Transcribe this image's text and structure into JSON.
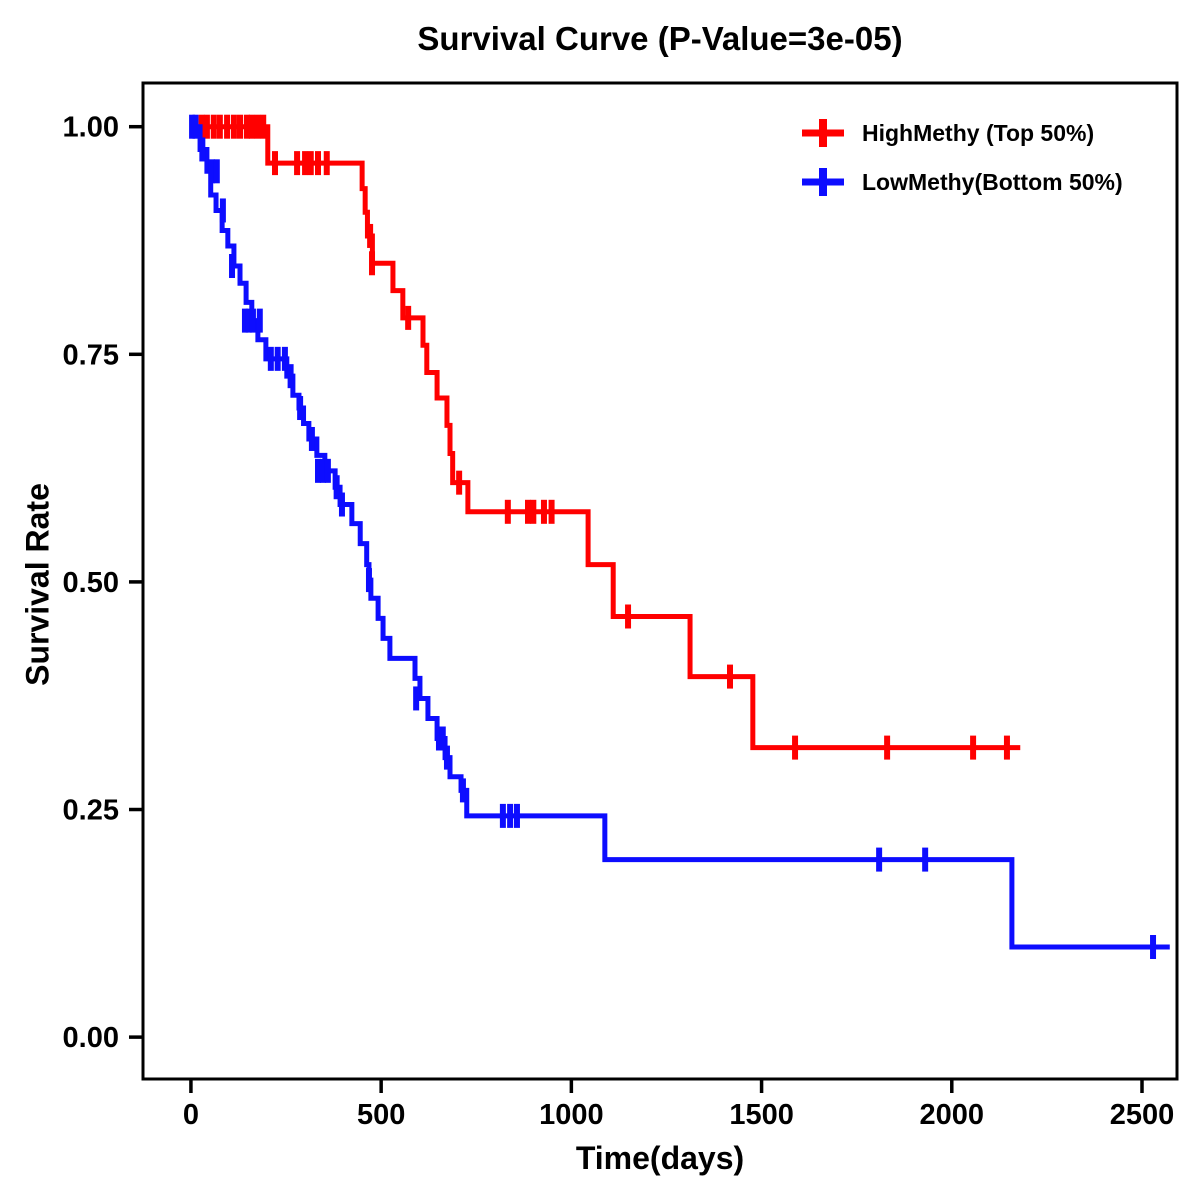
{
  "title": "Survival Curve (P-Value=3e-05)",
  "chart_data": {
    "type": "line",
    "subtype": "kaplan-meier-step-curves",
    "title": "Survival Curve (P-Value=3e-05)",
    "xlabel": "Time(days)",
    "ylabel": "Survival Rate",
    "grid": false,
    "legend_position": "top-right-inside",
    "x_tick_values": [
      0,
      500,
      1000,
      1500,
      2000,
      2500
    ],
    "x_tick_labels": [
      "0",
      "500",
      "1000",
      "1500",
      "2000",
      "2500"
    ],
    "y_tick_values": [
      0,
      0.25,
      0.5,
      0.75,
      1.0
    ],
    "y_tick_labels": [
      "0.00",
      "0.25",
      "0.50",
      "0.75",
      "1.00"
    ],
    "xlim": [
      -126,
      2592
    ],
    "ylim": [
      -0.046,
      1.048
    ],
    "series": [
      {
        "name": "HighMethy (Top 50%)",
        "slug": "highmethy",
        "color": "#FF0000",
        "start": [
          0,
          1.0
        ],
        "end_time": 2180,
        "steps": [
          [
            202,
            0.96
          ],
          [
            450,
            0.932
          ],
          [
            458,
            0.906
          ],
          [
            464,
            0.88
          ],
          [
            477,
            0.85
          ],
          [
            531,
            0.82
          ],
          [
            557,
            0.79
          ],
          [
            610,
            0.76
          ],
          [
            620,
            0.73
          ],
          [
            647,
            0.702
          ],
          [
            673,
            0.672
          ],
          [
            681,
            0.641
          ],
          [
            688,
            0.609
          ],
          [
            728,
            0.577
          ],
          [
            1044,
            0.519
          ],
          [
            1110,
            0.462
          ],
          [
            1312,
            0.396
          ],
          [
            1477,
            0.318
          ]
        ],
        "censors": [
          [
            28,
            1.0
          ],
          [
            42,
            1.0
          ],
          [
            60,
            1.0
          ],
          [
            76,
            1.0
          ],
          [
            95,
            1.0
          ],
          [
            113,
            1.0
          ],
          [
            129,
            1.0
          ],
          [
            147,
            1.0
          ],
          [
            160,
            1.0
          ],
          [
            175,
            1.0
          ],
          [
            190,
            1.0
          ],
          [
            221,
            0.96
          ],
          [
            279,
            0.96
          ],
          [
            300,
            0.96
          ],
          [
            315,
            0.96
          ],
          [
            334,
            0.96
          ],
          [
            357,
            0.96
          ],
          [
            471,
            0.88
          ],
          [
            476,
            0.85
          ],
          [
            571,
            0.79
          ],
          [
            705,
            0.609
          ],
          [
            833,
            0.577
          ],
          [
            886,
            0.577
          ],
          [
            900,
            0.577
          ],
          [
            928,
            0.577
          ],
          [
            948,
            0.577
          ],
          [
            1149,
            0.462
          ],
          [
            1417,
            0.396
          ],
          [
            1588,
            0.318
          ],
          [
            1830,
            0.318
          ],
          [
            2056,
            0.318
          ],
          [
            2145,
            0.318
          ]
        ]
      },
      {
        "name": "LowMethy(Bottom 50%)",
        "slug": "lowmethy",
        "color": "#0D0DFF",
        "start": [
          0,
          1.0
        ],
        "end_time": 2573,
        "steps": [
          [
            24,
            0.975
          ],
          [
            42,
            0.951
          ],
          [
            52,
            0.925
          ],
          [
            66,
            0.908
          ],
          [
            82,
            0.886
          ],
          [
            97,
            0.869
          ],
          [
            113,
            0.847
          ],
          [
            129,
            0.828
          ],
          [
            145,
            0.807
          ],
          [
            160,
            0.787
          ],
          [
            176,
            0.766
          ],
          [
            197,
            0.745
          ],
          [
            252,
            0.726
          ],
          [
            268,
            0.705
          ],
          [
            284,
            0.691
          ],
          [
            296,
            0.674
          ],
          [
            310,
            0.657
          ],
          [
            331,
            0.639
          ],
          [
            352,
            0.622
          ],
          [
            379,
            0.604
          ],
          [
            392,
            0.585
          ],
          [
            423,
            0.564
          ],
          [
            445,
            0.542
          ],
          [
            462,
            0.519
          ],
          [
            468,
            0.502
          ],
          [
            473,
            0.482
          ],
          [
            492,
            0.46
          ],
          [
            505,
            0.438
          ],
          [
            523,
            0.416
          ],
          [
            589,
            0.394
          ],
          [
            602,
            0.372
          ],
          [
            623,
            0.35
          ],
          [
            647,
            0.328
          ],
          [
            668,
            0.307
          ],
          [
            681,
            0.286
          ],
          [
            710,
            0.271
          ],
          [
            725,
            0.243
          ],
          [
            1088,
            0.195
          ],
          [
            2158,
            0.099
          ]
        ],
        "censors": [
          [
            3,
            1.0
          ],
          [
            12,
            1.0
          ],
          [
            30,
            0.975
          ],
          [
            55,
            0.951
          ],
          [
            68,
            0.951
          ],
          [
            84,
            0.908
          ],
          [
            108,
            0.847
          ],
          [
            142,
            0.787
          ],
          [
            152,
            0.787
          ],
          [
            163,
            0.787
          ],
          [
            181,
            0.787
          ],
          [
            210,
            0.745
          ],
          [
            228,
            0.745
          ],
          [
            247,
            0.745
          ],
          [
            262,
            0.726
          ],
          [
            287,
            0.691
          ],
          [
            318,
            0.657
          ],
          [
            334,
            0.622
          ],
          [
            347,
            0.622
          ],
          [
            360,
            0.622
          ],
          [
            383,
            0.604
          ],
          [
            397,
            0.585
          ],
          [
            468,
            0.502
          ],
          [
            592,
            0.372
          ],
          [
            652,
            0.328
          ],
          [
            662,
            0.328
          ],
          [
            673,
            0.307
          ],
          [
            715,
            0.271
          ],
          [
            820,
            0.243
          ],
          [
            839,
            0.243
          ],
          [
            857,
            0.243
          ],
          [
            1809,
            0.195
          ],
          [
            1930,
            0.195
          ],
          [
            2529,
            0.099
          ]
        ]
      }
    ]
  },
  "legend": {
    "entries": [
      {
        "label": "HighMethy (Top 50%)"
      },
      {
        "label": "LowMethy(Bottom 50%)"
      }
    ]
  }
}
